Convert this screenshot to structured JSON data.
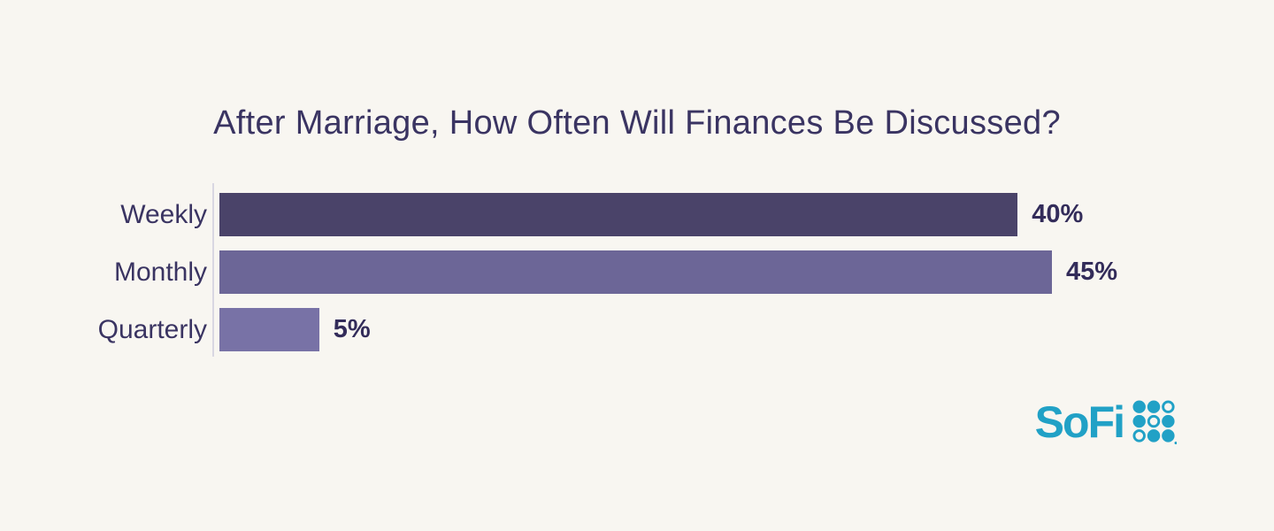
{
  "page": {
    "background_color": "#f8f6f1"
  },
  "chart_data": {
    "type": "bar",
    "orientation": "horizontal",
    "title": "After Marriage, How Often Will Finances Be Discussed?",
    "categories": [
      "Weekly",
      "Monthly",
      "Quarterly"
    ],
    "values": [
      40,
      45,
      5
    ],
    "value_labels": [
      "40%",
      "45%",
      "5%"
    ],
    "xlim": [
      0,
      45
    ],
    "bar_colors": [
      "#4a4369",
      "#6c6697",
      "#7872a6"
    ],
    "title_color": "#3a3462",
    "category_label_color": "#3a3462",
    "value_label_color": "#332c5a",
    "axis_line_color": "#d9d7e2",
    "grid": "off",
    "legend": "none"
  },
  "logo": {
    "text": "SoFi",
    "color": "#21a1c6",
    "dot_grid": [
      [
        "filled",
        "filled",
        "outline"
      ],
      [
        "filled",
        "outline",
        "filled"
      ],
      [
        "outline",
        "filled",
        "filled"
      ]
    ]
  }
}
